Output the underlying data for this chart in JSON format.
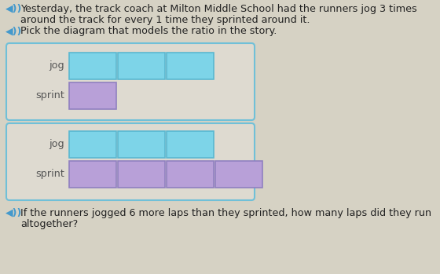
{
  "bg_color": "#d6d2c4",
  "text1a": "◀◀)) Yesterday, the track coach at Milton Middle School had the runners jog 3 times",
  "text1b": "around the track for every 1 time they sprinted around it.",
  "text2": "◀◀)) Pick the diagram that models the ratio in the story.",
  "text3a": "◀◀)) If the runners jogged 6 more laps than they sprinted, how many laps did they run",
  "text3b": "altogether?",
  "jog_color": "#7dd4e8",
  "sprint_color": "#b8a0d8",
  "box_border_color": "#70c0d8",
  "box_bg_color": "#dedad0",
  "diagram1": {
    "jog_blocks": 3,
    "sprint_blocks": 1
  },
  "diagram2": {
    "jog_blocks": 3,
    "sprint_blocks": 4
  },
  "label_color": "#555555",
  "font_size_text": 9.2,
  "font_size_label": 9.2,
  "speaker_color": "#4499cc"
}
